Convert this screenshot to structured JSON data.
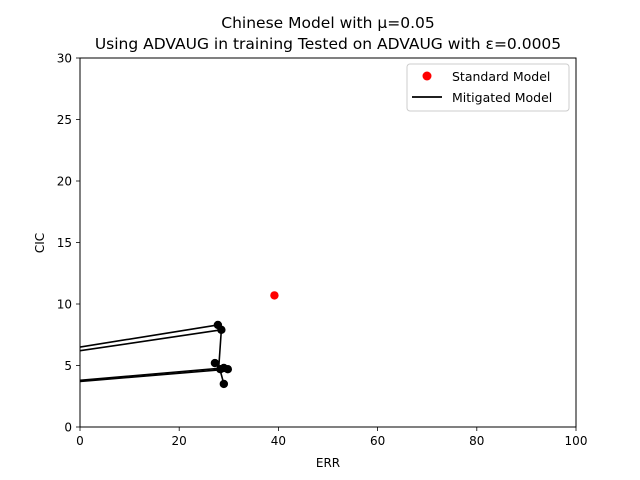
{
  "chart_data": {
    "type": "scatter",
    "title_lines": [
      "Chinese Model with μ=0.05",
      "Using ADVAUG in training Tested on ADVAUG with ε=0.0005"
    ],
    "xlabel": "ERR",
    "ylabel": "CIC",
    "xlim": [
      0,
      100
    ],
    "ylim": [
      0,
      30
    ],
    "xticks": [
      0,
      20,
      40,
      60,
      80,
      100
    ],
    "yticks": [
      0,
      5,
      10,
      15,
      20,
      25,
      30
    ],
    "grid": false,
    "legend_position": "top-right",
    "series": [
      {
        "name": "Standard Model",
        "kind": "scatter",
        "color": "#ff0000",
        "points": [
          [
            39.2,
            10.7
          ]
        ]
      },
      {
        "name": "Mitigated Model",
        "kind": "line",
        "color": "#000000",
        "marker_color": "#000000",
        "polylines": [
          [
            [
              0,
              6.5
            ],
            [
              27.8,
              8.3
            ]
          ],
          [
            [
              0,
              6.2
            ],
            [
              28.5,
              7.9
            ]
          ],
          [
            [
              0,
              3.8
            ],
            [
              29.0,
              4.8
            ]
          ],
          [
            [
              0,
              3.7
            ],
            [
              29.8,
              4.7
            ]
          ],
          [
            [
              27.8,
              8.3
            ],
            [
              28.5,
              7.9
            ],
            [
              28.0,
              5.0
            ],
            [
              29.0,
              3.5
            ]
          ],
          [
            [
              27.2,
              5.2
            ],
            [
              28.3,
              4.7
            ],
            [
              29.0,
              4.8
            ],
            [
              29.8,
              4.7
            ]
          ]
        ],
        "points": [
          [
            27.8,
            8.3
          ],
          [
            28.5,
            7.9
          ],
          [
            27.2,
            5.2
          ],
          [
            28.3,
            4.7
          ],
          [
            29.0,
            4.8
          ],
          [
            29.8,
            4.7
          ],
          [
            29.0,
            3.5
          ]
        ]
      }
    ]
  }
}
